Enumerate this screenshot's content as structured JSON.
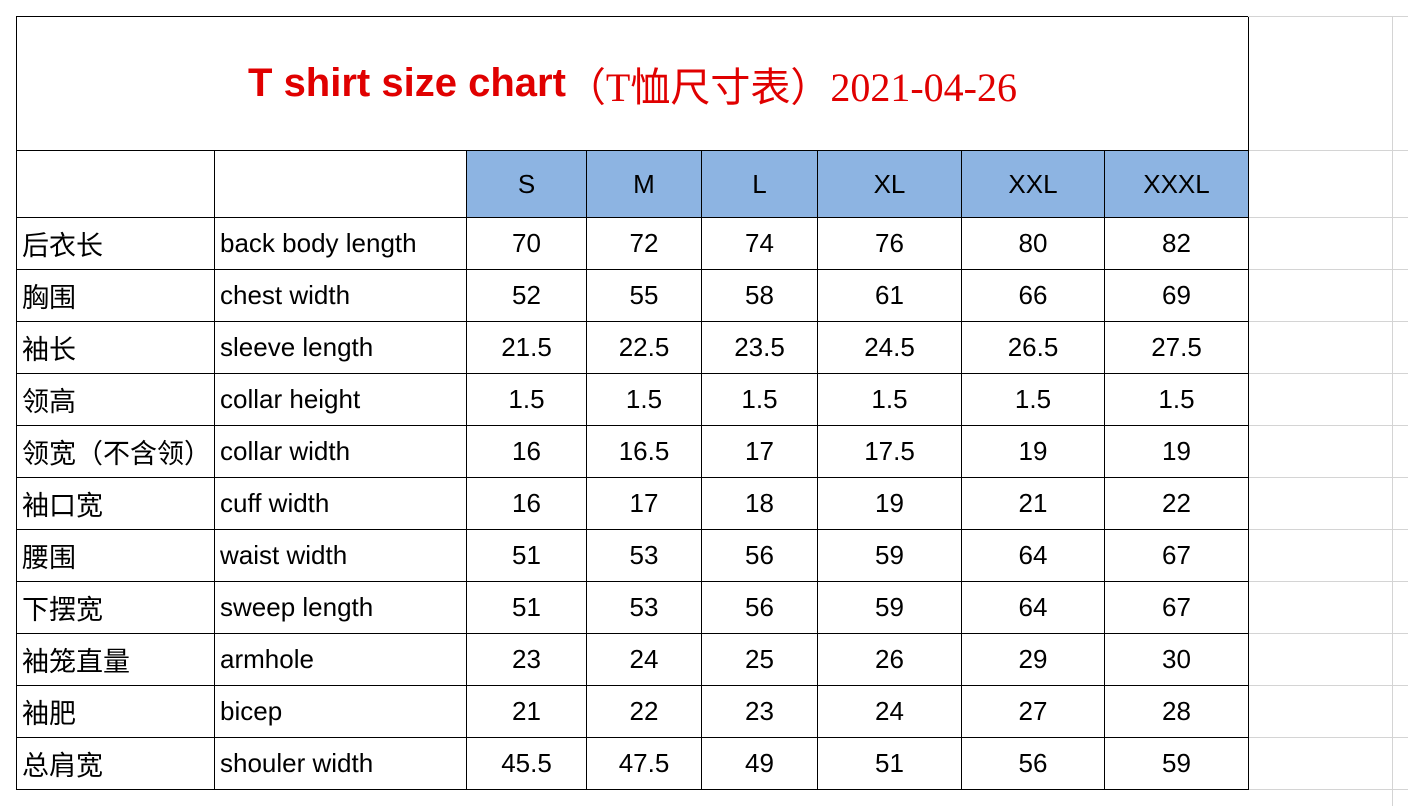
{
  "title": {
    "main": "T shirt size chart",
    "rest": "（T恤尺寸表）2021-04-26"
  },
  "table": {
    "sizes": [
      "S",
      "M",
      "L",
      "XL",
      "XXL",
      "XXXL"
    ],
    "rows": [
      [
        "后衣长",
        "back body length",
        70,
        72,
        74,
        76,
        80,
        82
      ],
      [
        "胸围",
        "chest width",
        52,
        55,
        58,
        61,
        66,
        69
      ],
      [
        "袖长",
        "sleeve length",
        21.5,
        22.5,
        23.5,
        24.5,
        26.5,
        27.5
      ],
      [
        "领高",
        "collar height",
        1.5,
        1.5,
        1.5,
        1.5,
        1.5,
        1.5
      ],
      [
        "领宽（不含领）",
        "collar width",
        16,
        16.5,
        17,
        17.5,
        19,
        19
      ],
      [
        "袖口宽",
        "cuff width",
        16,
        17,
        18,
        19,
        21,
        22
      ],
      [
        "腰围",
        "waist width",
        51,
        53,
        56,
        59,
        64,
        67
      ],
      [
        "下摆宽",
        "sweep length",
        51,
        53,
        56,
        59,
        64,
        67
      ],
      [
        "袖笼直量",
        "armhole",
        23,
        24,
        25,
        26,
        29,
        30
      ],
      [
        "袖肥",
        "bicep",
        21,
        22,
        23,
        24,
        27,
        28
      ],
      [
        "总肩宽",
        "shouler width",
        45.5,
        47.5,
        49,
        51,
        56,
        59
      ]
    ]
  }
}
